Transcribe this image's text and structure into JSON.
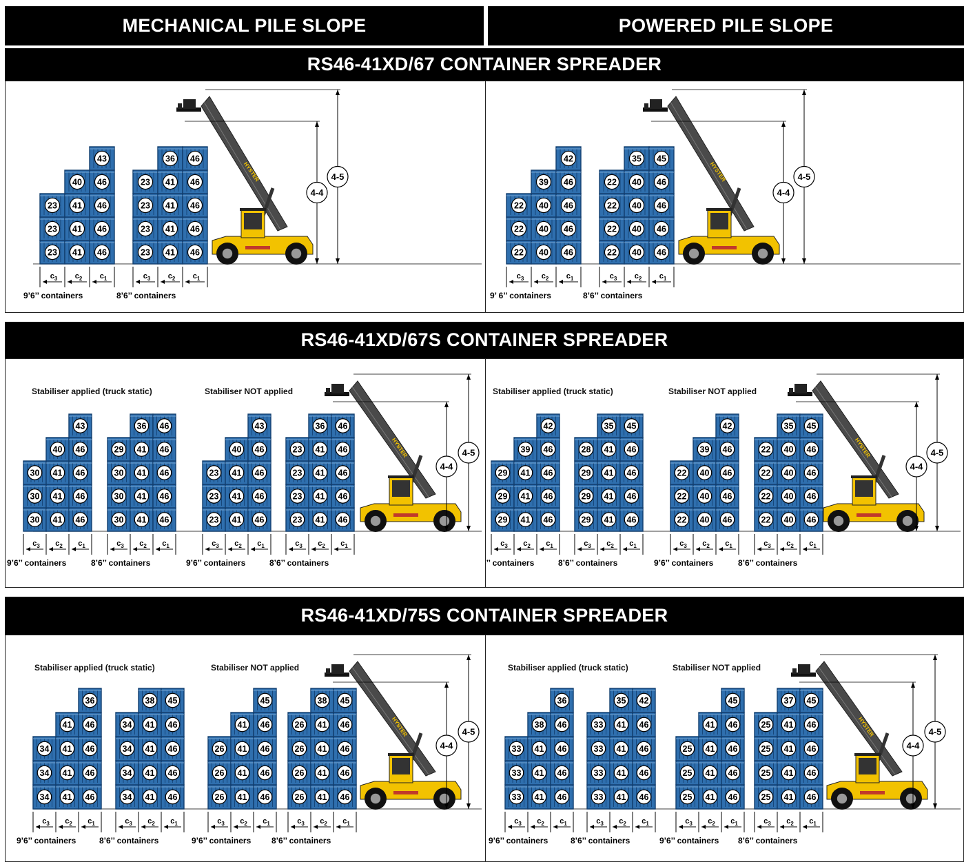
{
  "header": {
    "left": "MECHANICAL PILE SLOPE",
    "right": "POWERED PILE SLOPE"
  },
  "truck_brand": "HYSTER",
  "dim_labels": {
    "high": "4-5",
    "low": "4-4"
  },
  "offset_labels": {
    "c3": "c",
    "c3_sub": "3",
    "c2": "c",
    "c2_sub": "2",
    "c1": "c",
    "c1_sub": "1"
  },
  "container_labels": {
    "tall": "9’6’’ containers",
    "tall_powered_67": "9’ 6’’ containers",
    "std": "8’6’’ containers"
  },
  "colors": {
    "container_fill": "#2f6fae",
    "container_dark": "#123e6e",
    "truck_yellow": "#f2c200",
    "boom": "#4a4a4a"
  },
  "sections": [
    {
      "title": "RS46-41XD/67 CONTAINER SPREADER",
      "panels": [
        {
          "notes": [],
          "stacks": [
            {
              "caption_key": "tall",
              "cols": [
                [
                  "23",
                  "23",
                  "23"
                ],
                [
                  "41",
                  "41",
                  "41",
                  "40"
                ],
                [
                  "46",
                  "46",
                  "46",
                  "46",
                  "43"
                ]
              ]
            },
            {
              "caption_key": "std",
              "cols": [
                [
                  "23",
                  "23",
                  "23",
                  "23"
                ],
                [
                  "41",
                  "41",
                  "41",
                  "41",
                  "36"
                ],
                [
                  "46",
                  "46",
                  "46",
                  "46",
                  "46"
                ]
              ]
            }
          ]
        },
        {
          "notes": [],
          "stacks": [
            {
              "caption_key": "tall_powered_67",
              "cols": [
                [
                  "22",
                  "22",
                  "22"
                ],
                [
                  "40",
                  "40",
                  "40",
                  "39"
                ],
                [
                  "46",
                  "46",
                  "46",
                  "46",
                  "42"
                ]
              ]
            },
            {
              "caption_key": "std",
              "cols": [
                [
                  "22",
                  "22",
                  "22",
                  "22"
                ],
                [
                  "40",
                  "40",
                  "40",
                  "40",
                  "35"
                ],
                [
                  "46",
                  "46",
                  "46",
                  "46",
                  "45"
                ]
              ]
            }
          ]
        }
      ]
    },
    {
      "title": "RS46-41XD/67S CONTAINER SPREADER",
      "panels": [
        {
          "notes": [
            "Stabiliser applied (truck static)",
            "Stabiliser NOT applied"
          ],
          "stacks": [
            {
              "caption_key": "tall",
              "cols": [
                [
                  "30",
                  "30",
                  "30"
                ],
                [
                  "41",
                  "41",
                  "41",
                  "40"
                ],
                [
                  "46",
                  "46",
                  "46",
                  "46",
                  "43"
                ]
              ]
            },
            {
              "caption_key": "std",
              "cols": [
                [
                  "30",
                  "30",
                  "30",
                  "29"
                ],
                [
                  "41",
                  "41",
                  "41",
                  "41",
                  "36"
                ],
                [
                  "46",
                  "46",
                  "46",
                  "46",
                  "46"
                ]
              ]
            },
            {
              "caption_key": "tall",
              "cols": [
                [
                  "23",
                  "23",
                  "23"
                ],
                [
                  "41",
                  "41",
                  "41",
                  "40"
                ],
                [
                  "46",
                  "46",
                  "46",
                  "46",
                  "43"
                ]
              ]
            },
            {
              "caption_key": "std",
              "cols": [
                [
                  "23",
                  "23",
                  "23",
                  "23"
                ],
                [
                  "41",
                  "41",
                  "41",
                  "41",
                  "36"
                ],
                [
                  "46",
                  "46",
                  "46",
                  "46",
                  "46"
                ]
              ]
            }
          ]
        },
        {
          "notes": [
            "Stabiliser applied (truck static)",
            "Stabiliser NOT applied"
          ],
          "stacks": [
            {
              "caption_key": "tall",
              "cols": [
                [
                  "29",
                  "29",
                  "29"
                ],
                [
                  "41",
                  "41",
                  "41",
                  "39"
                ],
                [
                  "46",
                  "46",
                  "46",
                  "46",
                  "42"
                ]
              ]
            },
            {
              "caption_key": "std",
              "cols": [
                [
                  "29",
                  "29",
                  "29",
                  "28"
                ],
                [
                  "41",
                  "41",
                  "41",
                  "41",
                  "35"
                ],
                [
                  "46",
                  "46",
                  "46",
                  "46",
                  "45"
                ]
              ]
            },
            {
              "caption_key": "tall",
              "cols": [
                [
                  "22",
                  "22",
                  "22"
                ],
                [
                  "40",
                  "40",
                  "40",
                  "39"
                ],
                [
                  "46",
                  "46",
                  "46",
                  "46",
                  "42"
                ]
              ]
            },
            {
              "caption_key": "std",
              "cols": [
                [
                  "22",
                  "22",
                  "22",
                  "22"
                ],
                [
                  "40",
                  "40",
                  "40",
                  "40",
                  "35"
                ],
                [
                  "46",
                  "46",
                  "46",
                  "46",
                  "45"
                ]
              ]
            }
          ]
        }
      ]
    },
    {
      "title": "RS46-41XD/75S CONTAINER SPREADER",
      "panels": [
        {
          "notes": [
            "Stabiliser applied (truck static)",
            "Stabiliser NOT applied"
          ],
          "stacks": [
            {
              "caption_key": "tall",
              "cols": [
                [
                  "34",
                  "34",
                  "34"
                ],
                [
                  "41",
                  "41",
                  "41",
                  "41"
                ],
                [
                  "46",
                  "46",
                  "46",
                  "46",
                  "36"
                ]
              ]
            },
            {
              "caption_key": "std",
              "cols": [
                [
                  "34",
                  "34",
                  "34",
                  "34"
                ],
                [
                  "41",
                  "41",
                  "41",
                  "41",
                  "38"
                ],
                [
                  "46",
                  "46",
                  "46",
                  "46",
                  "45"
                ]
              ]
            },
            {
              "caption_key": "tall",
              "cols": [
                [
                  "26",
                  "26",
                  "26"
                ],
                [
                  "41",
                  "41",
                  "41",
                  "41"
                ],
                [
                  "46",
                  "46",
                  "46",
                  "46",
                  "45"
                ]
              ]
            },
            {
              "caption_key": "std",
              "cols": [
                [
                  "26",
                  "26",
                  "26",
                  "26"
                ],
                [
                  "41",
                  "41",
                  "41",
                  "41",
                  "38"
                ],
                [
                  "46",
                  "46",
                  "46",
                  "46",
                  "45"
                ]
              ]
            }
          ]
        },
        {
          "notes": [
            "Stabiliser applied (truck static)",
            "Stabiliser NOT applied"
          ],
          "stacks": [
            {
              "caption_key": "tall",
              "cols": [
                [
                  "33",
                  "33",
                  "33"
                ],
                [
                  "41",
                  "41",
                  "41",
                  "38"
                ],
                [
                  "46",
                  "46",
                  "46",
                  "46",
                  "36"
                ]
              ]
            },
            {
              "caption_key": "std",
              "cols": [
                [
                  "33",
                  "33",
                  "33",
                  "33"
                ],
                [
                  "41",
                  "41",
                  "41",
                  "41",
                  "35"
                ],
                [
                  "46",
                  "46",
                  "46",
                  "46",
                  "42"
                ]
              ]
            },
            {
              "caption_key": "tall",
              "cols": [
                [
                  "25",
                  "25",
                  "25"
                ],
                [
                  "41",
                  "41",
                  "41",
                  "41"
                ],
                [
                  "46",
                  "46",
                  "46",
                  "46",
                  "45"
                ]
              ]
            },
            {
              "caption_key": "std",
              "cols": [
                [
                  "25",
                  "25",
                  "25",
                  "25"
                ],
                [
                  "41",
                  "41",
                  "41",
                  "41",
                  "37"
                ],
                [
                  "46",
                  "46",
                  "46",
                  "46",
                  "45"
                ]
              ]
            }
          ]
        }
      ]
    }
  ]
}
